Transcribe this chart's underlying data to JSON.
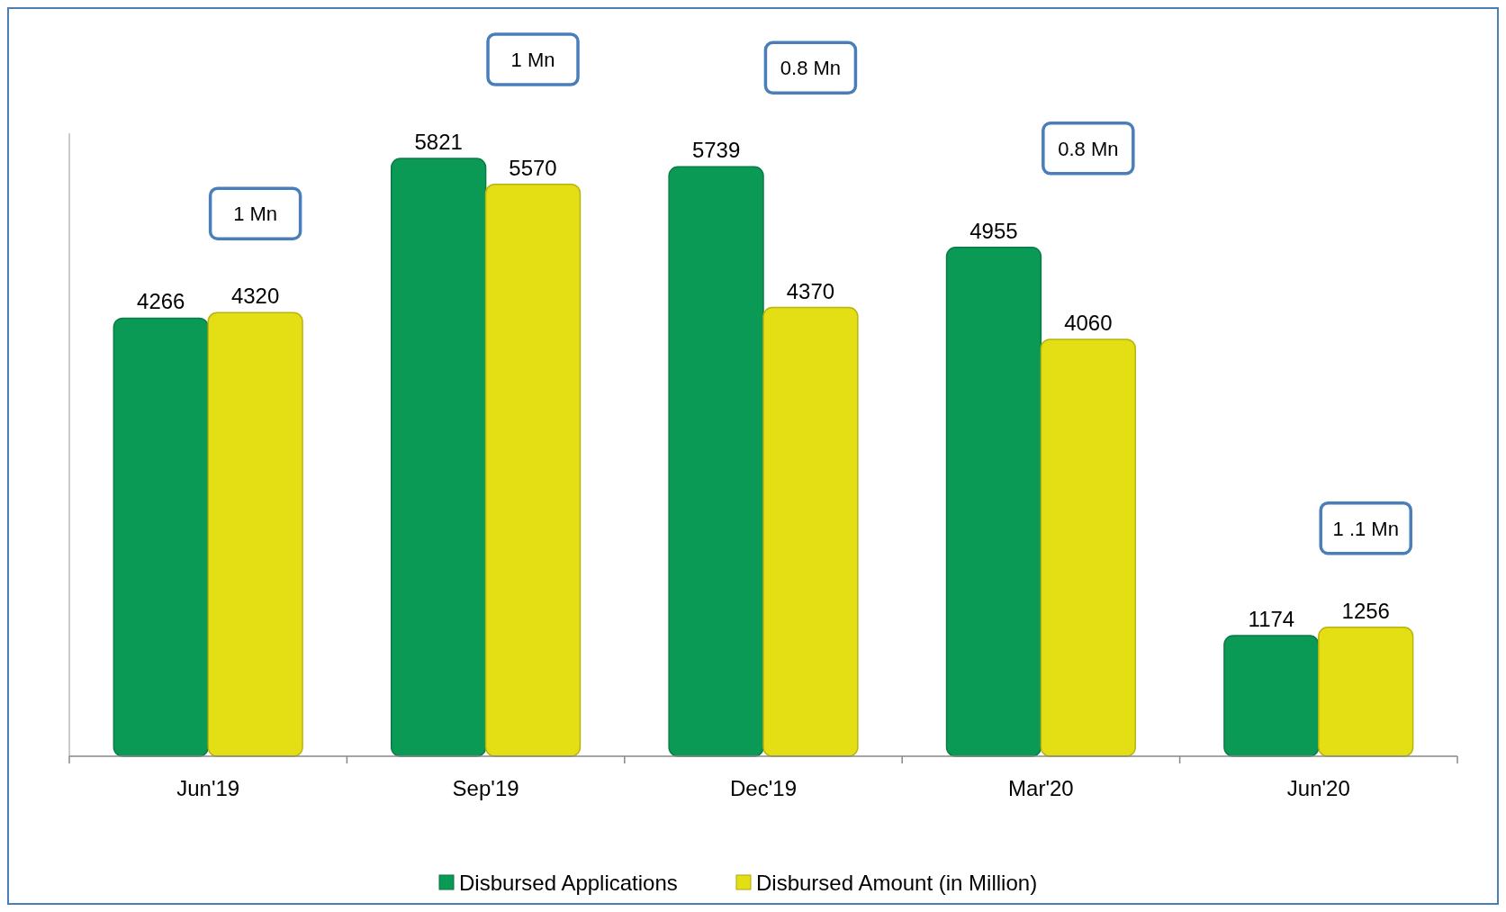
{
  "chart_data": {
    "type": "bar",
    "categories": [
      "Jun'19",
      "Sep'19",
      "Dec'19",
      "Mar'20",
      "Jun'20"
    ],
    "series": [
      {
        "name": "Disbursed Applications",
        "color": "#0a9a55",
        "values": [
          4266,
          5821,
          5739,
          4955,
          1174
        ]
      },
      {
        "name": "Disbursed Amount (in Million)",
        "color": "#e3df14",
        "values": [
          4320,
          5570,
          4370,
          4060,
          1256
        ]
      }
    ],
    "data_labels": true,
    "legend": "bottom",
    "grid": false,
    "annotations": [
      "1 Mn",
      "1 Mn",
      "0.8 Mn",
      "0.8 Mn",
      "1 .1 Mn"
    ]
  }
}
